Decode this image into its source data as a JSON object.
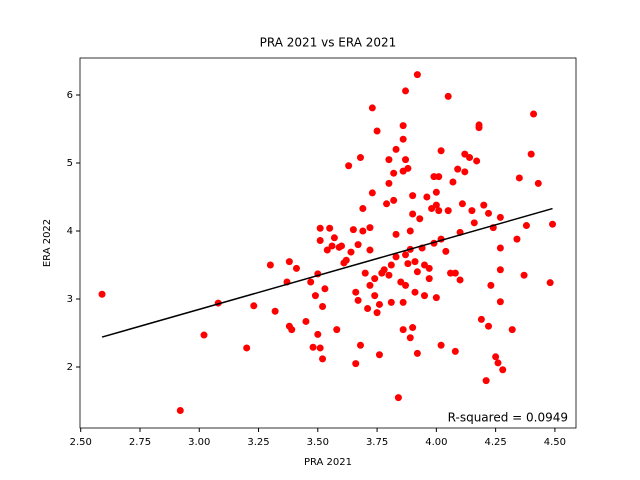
{
  "chart_data": {
    "type": "scatter",
    "title": "PRA 2021 vs ERA 2021",
    "x_label": "PRA 2021",
    "y_label": "ERA 2022",
    "color": "#ff0000",
    "x": [
      2.59,
      2.92,
      3.02,
      3.08,
      3.2,
      3.23,
      3.3,
      3.32,
      3.37,
      3.38,
      3.38,
      3.39,
      3.41,
      3.45,
      3.47,
      3.48,
      3.49,
      3.5,
      3.5,
      3.51,
      3.51,
      3.51,
      3.52,
      3.52,
      3.53,
      3.54,
      3.55,
      3.56,
      3.57,
      3.58,
      3.59,
      3.6,
      3.61,
      3.62,
      3.63,
      3.64,
      3.65,
      3.66,
      3.66,
      3.67,
      3.67,
      3.68,
      3.68,
      3.69,
      3.69,
      3.7,
      3.71,
      3.72,
      3.72,
      3.72,
      3.73,
      3.73,
      3.74,
      3.74,
      3.75,
      3.75,
      3.76,
      3.76,
      3.77,
      3.78,
      3.79,
      3.8,
      3.8,
      3.8,
      3.81,
      3.81,
      3.82,
      3.82,
      3.83,
      3.83,
      3.83,
      3.84,
      3.85,
      3.86,
      3.86,
      3.86,
      3.86,
      3.86,
      3.87,
      3.87,
      3.87,
      3.87,
      3.88,
      3.88,
      3.89,
      3.89,
      3.89,
      3.9,
      3.9,
      3.9,
      3.91,
      3.91,
      3.92,
      3.92,
      3.92,
      3.93,
      3.94,
      3.95,
      3.95,
      3.96,
      3.97,
      3.97,
      3.98,
      3.99,
      3.99,
      4.0,
      4.0,
      4.0,
      4.01,
      4.01,
      4.02,
      4.02,
      4.02,
      4.04,
      4.05,
      4.05,
      4.06,
      4.07,
      4.08,
      4.08,
      4.09,
      4.1,
      4.1,
      4.11,
      4.12,
      4.12,
      4.14,
      4.15,
      4.16,
      4.17,
      4.18,
      4.18,
      4.19,
      4.2,
      4.21,
      4.22,
      4.22,
      4.23,
      4.24,
      4.25,
      4.26,
      4.27,
      4.27,
      4.27,
      4.27,
      4.28,
      4.32,
      4.34,
      4.35,
      4.37,
      4.38,
      4.4,
      4.41,
      4.43,
      4.48,
      4.49
    ],
    "y": [
      3.07,
      1.36,
      2.47,
      2.94,
      2.28,
      2.9,
      3.5,
      2.82,
      3.25,
      3.55,
      2.6,
      2.55,
      3.45,
      2.67,
      3.25,
      2.29,
      3.05,
      2.48,
      3.37,
      4.04,
      3.86,
      2.28,
      2.89,
      2.12,
      3.15,
      3.72,
      4.04,
      3.78,
      3.9,
      2.55,
      3.76,
      3.78,
      3.53,
      3.57,
      4.96,
      3.69,
      4.02,
      3.1,
      2.05,
      3.8,
      2.98,
      5.08,
      2.32,
      4.33,
      4.0,
      3.38,
      2.86,
      4.05,
      3.72,
      3.2,
      5.81,
      4.56,
      3.3,
      3.05,
      5.47,
      2.8,
      2.92,
      2.18,
      3.38,
      3.43,
      4.4,
      5.05,
      4.7,
      3.35,
      3.5,
      2.95,
      4.85,
      4.45,
      5.2,
      3.95,
      3.62,
      1.55,
      3.25,
      5.55,
      5.35,
      4.88,
      2.55,
      2.95,
      6.06,
      5.05,
      3.65,
      3.2,
      4.92,
      3.52,
      4.0,
      3.73,
      2.43,
      4.52,
      4.25,
      2.58,
      3.1,
      3.55,
      6.3,
      3.4,
      2.2,
      4.18,
      3.75,
      3.05,
      3.5,
      4.5,
      3.45,
      3.3,
      4.33,
      4.8,
      3.82,
      4.57,
      4.38,
      3.02,
      4.8,
      4.3,
      5.18,
      3.88,
      2.32,
      3.7,
      5.98,
      4.3,
      3.38,
      4.72,
      2.23,
      3.38,
      4.91,
      3.98,
      3.28,
      4.4,
      4.87,
      5.13,
      5.08,
      4.3,
      4.12,
      5.03,
      5.56,
      5.52,
      2.7,
      4.38,
      1.8,
      2.6,
      4.26,
      3.2,
      4.05,
      2.15,
      2.06,
      4.2,
      3.75,
      3.43,
      2.96,
      1.96,
      2.55,
      3.88,
      4.78,
      3.35,
      4.08,
      5.13,
      5.72,
      4.7,
      3.24,
      4.1
    ],
    "fit": {
      "color": "#000000",
      "x": [
        2.59,
        4.49
      ],
      "y": [
        2.44,
        4.33
      ]
    },
    "annotation": "R-squared = 0.0949",
    "xlim": [
      2.497,
      4.589
    ],
    "ylim": [
      1.103,
      6.544
    ],
    "xticks": [
      {
        "value": 2.5,
        "label": "2.50"
      },
      {
        "value": 2.75,
        "label": "2.75"
      },
      {
        "value": 3.0,
        "label": "3.00"
      },
      {
        "value": 3.25,
        "label": "3.25"
      },
      {
        "value": 3.5,
        "label": "3.50"
      },
      {
        "value": 3.75,
        "label": "3.75"
      },
      {
        "value": 4.0,
        "label": "4.00"
      },
      {
        "value": 4.25,
        "label": "4.25"
      },
      {
        "value": 4.5,
        "label": "4.50"
      }
    ],
    "yticks": [
      2,
      3,
      4,
      5,
      6
    ]
  }
}
